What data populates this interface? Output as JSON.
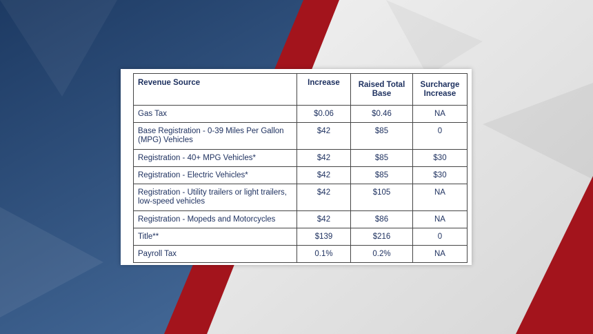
{
  "table": {
    "headers": [
      "Revenue Source",
      "Increase",
      "Raised Total Base",
      "Surcharge Increase"
    ],
    "rows": [
      [
        "Gas Tax",
        "$0.06",
        "$0.46",
        "NA"
      ],
      [
        "Base Registration - 0-39 Miles Per Gallon (MPG) Vehicles",
        "$42",
        "$85",
        "0"
      ],
      [
        "Registration - 40+ MPG Vehicles*",
        "$42",
        "$85",
        "$30"
      ],
      [
        "Registration - Electric Vehicles*",
        "$42",
        "$85",
        "$30"
      ],
      [
        "Registration - Utility trailers or light trailers, low-speed vehicles",
        "$42",
        "$105",
        "NA"
      ],
      [
        "Registration - Mopeds and Motorcycles",
        "$42",
        "$86",
        "NA"
      ],
      [
        "Title**",
        "$139",
        "$216",
        "0"
      ],
      [
        "Payroll Tax",
        "0.1%",
        "0.2%",
        "NA"
      ]
    ]
  },
  "colors": {
    "text": "#1c2f5e",
    "background_blue": "#2a4a72",
    "background_red": "#a3141c",
    "background_white": "#eeeeee"
  }
}
